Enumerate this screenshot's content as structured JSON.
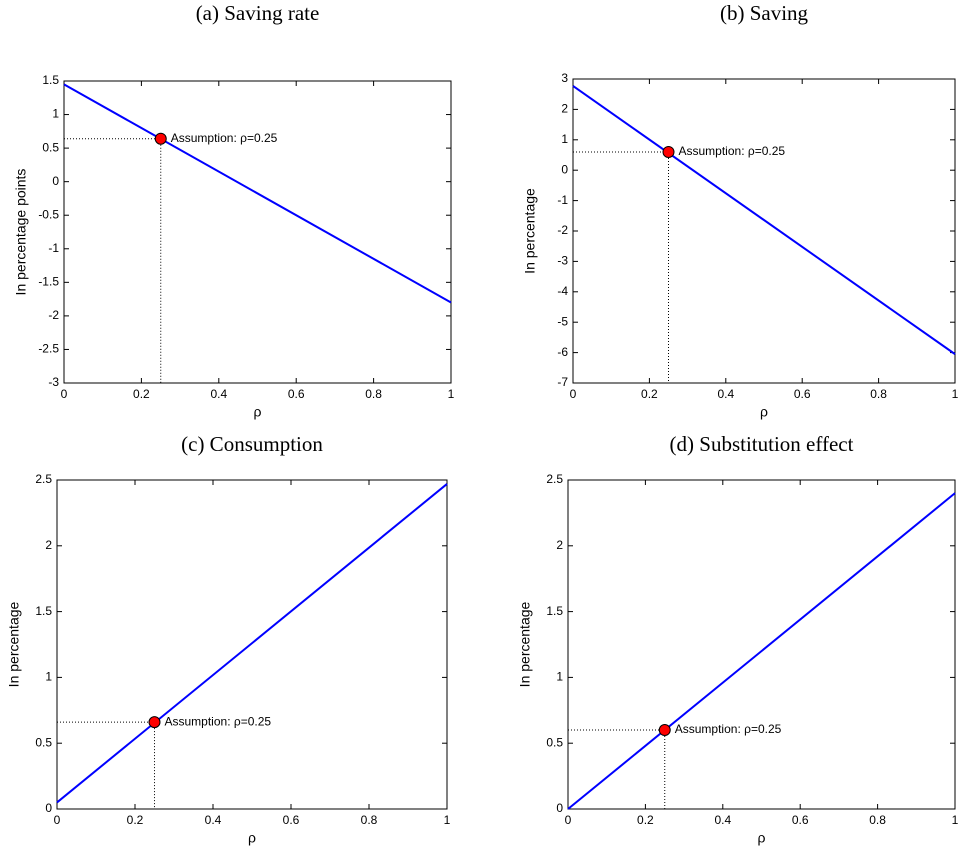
{
  "chart_data": [
    {
      "type": "line",
      "title": "(a) Saving rate",
      "xlabel": "ρ",
      "ylabel": "In percentage points",
      "x": [
        0,
        1
      ],
      "values": [
        1.45,
        -1.8
      ],
      "color": "#0000ff",
      "xlim": [
        0,
        1
      ],
      "ylim": [
        -3,
        1.5
      ],
      "xticks": [
        0,
        0.2,
        0.4,
        0.6,
        0.8,
        1
      ],
      "yticks": [
        -3,
        -2.5,
        -2,
        -1.5,
        -1,
        -0.5,
        0,
        0.5,
        1,
        1.5
      ],
      "marker": {
        "x": 0.25,
        "y": 0.64,
        "label": "Assumption: ρ=0.25",
        "color": "#ff0000"
      }
    },
    {
      "type": "line",
      "title": "(b) Saving",
      "xlabel": "ρ",
      "ylabel": "In percentage",
      "x": [
        0,
        1
      ],
      "values": [
        2.77,
        -6.05
      ],
      "color": "#0000ff",
      "xlim": [
        0,
        1
      ],
      "ylim": [
        -7,
        3
      ],
      "xticks": [
        0,
        0.2,
        0.4,
        0.6,
        0.8,
        1
      ],
      "yticks": [
        -7,
        -6,
        -5,
        -4,
        -3,
        -2,
        -1,
        0,
        1,
        2,
        3
      ],
      "marker": {
        "x": 0.25,
        "y": 0.6,
        "label": "Assumption: ρ=0.25",
        "color": "#ff0000"
      }
    },
    {
      "type": "line",
      "title": "(c) Consumption",
      "xlabel": "ρ",
      "ylabel": "In percentage",
      "x": [
        0,
        1
      ],
      "values": [
        0.05,
        2.47
      ],
      "color": "#0000ff",
      "xlim": [
        0,
        1
      ],
      "ylim": [
        0,
        2.5
      ],
      "xticks": [
        0,
        0.2,
        0.4,
        0.6,
        0.8,
        1
      ],
      "yticks": [
        0,
        0.5,
        1,
        1.5,
        2,
        2.5
      ],
      "marker": {
        "x": 0.25,
        "y": 0.66,
        "label": "Assumption: ρ=0.25",
        "color": "#ff0000"
      }
    },
    {
      "type": "line",
      "title": "(d) Substitution effect",
      "xlabel": "ρ",
      "ylabel": "In percentage",
      "x": [
        0,
        1
      ],
      "values": [
        0,
        2.4
      ],
      "color": "#0000ff",
      "xlim": [
        0,
        1
      ],
      "ylim": [
        0,
        2.5
      ],
      "xticks": [
        0,
        0.2,
        0.4,
        0.6,
        0.8,
        1
      ],
      "yticks": [
        0,
        0.5,
        1,
        1.5,
        2,
        2.5
      ],
      "marker": {
        "x": 0.25,
        "y": 0.6,
        "label": "Assumption: ρ=0.25",
        "color": "#ff0000"
      }
    }
  ]
}
